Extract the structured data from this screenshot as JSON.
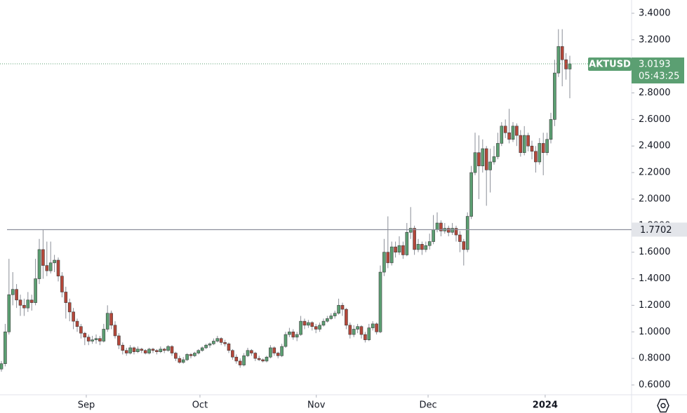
{
  "chart_data": {
    "type": "candlestick",
    "symbol": "AKTUSD",
    "up_color": "#5b9f72",
    "down_color": "#b5473a",
    "edge_color": "#3c3c3c",
    "ylim": [
      0.526,
      3.5
    ],
    "yticks": [
      {
        "value": 0.6,
        "label": "0.6000"
      },
      {
        "value": 0.8,
        "label": "0.8000"
      },
      {
        "value": 1.0,
        "label": "1.0000"
      },
      {
        "value": 1.2,
        "label": "1.2000"
      },
      {
        "value": 1.4,
        "label": "1.4000"
      },
      {
        "value": 1.6,
        "label": "1.6000"
      },
      {
        "value": 1.8,
        "label": "1.8000"
      },
      {
        "value": 2.0,
        "label": "2.0000"
      },
      {
        "value": 2.2,
        "label": "2.2000"
      },
      {
        "value": 2.4,
        "label": "2.4000"
      },
      {
        "value": 2.6,
        "label": "2.6000"
      },
      {
        "value": 2.8,
        "label": "2.8000"
      },
      {
        "value": 3.0,
        "label": "3.0000"
      },
      {
        "value": 3.2,
        "label": "3.2000"
      },
      {
        "value": 3.4,
        "label": "3.4000"
      }
    ],
    "xticks": [
      {
        "value": 22.4,
        "label": "Sep"
      },
      {
        "value": 52.4,
        "label": "Oct"
      },
      {
        "value": 83.1,
        "label": "Nov"
      },
      {
        "value": 112.6,
        "label": "Dec"
      },
      {
        "value": 143.5,
        "label": "2024"
      }
    ],
    "last_price": 3.0193,
    "countdown": "05:43:25",
    "horizontal_line": 1.7702,
    "candles": [
      [
        0.72,
        0.78,
        0.7,
        0.76
      ],
      [
        0.76,
        1.06,
        0.74,
        1.0
      ],
      [
        1.0,
        1.55,
        0.98,
        1.28
      ],
      [
        1.28,
        1.45,
        1.2,
        1.32
      ],
      [
        1.32,
        1.36,
        1.18,
        1.24
      ],
      [
        1.24,
        1.28,
        1.12,
        1.2
      ],
      [
        1.2,
        1.25,
        1.12,
        1.18
      ],
      [
        1.18,
        1.3,
        1.15,
        1.24
      ],
      [
        1.24,
        1.28,
        1.16,
        1.22
      ],
      [
        1.22,
        1.55,
        1.2,
        1.4
      ],
      [
        1.4,
        1.7,
        1.36,
        1.62
      ],
      [
        1.62,
        1.77,
        1.4,
        1.5
      ],
      [
        1.5,
        1.68,
        1.42,
        1.46
      ],
      [
        1.46,
        1.68,
        1.44,
        1.52
      ],
      [
        1.52,
        1.58,
        1.45,
        1.54
      ],
      [
        1.54,
        1.56,
        1.38,
        1.42
      ],
      [
        1.42,
        1.45,
        1.26,
        1.3
      ],
      [
        1.3,
        1.34,
        1.1,
        1.22
      ],
      [
        1.22,
        1.25,
        1.08,
        1.15
      ],
      [
        1.15,
        1.18,
        1.02,
        1.08
      ],
      [
        1.08,
        1.1,
        1.0,
        1.04
      ],
      [
        1.04,
        1.06,
        0.95,
        0.99
      ],
      [
        0.99,
        1.0,
        0.9,
        0.96
      ],
      [
        0.96,
        0.98,
        0.9,
        0.93
      ],
      [
        0.93,
        0.97,
        0.91,
        0.94
      ],
      [
        0.94,
        0.98,
        0.91,
        0.95
      ],
      [
        0.95,
        0.97,
        0.9,
        0.93
      ],
      [
        0.93,
        1.06,
        0.92,
        1.02
      ],
      [
        1.02,
        1.2,
        1.0,
        1.14
      ],
      [
        1.14,
        1.16,
        1.02,
        1.05
      ],
      [
        1.05,
        1.08,
        0.95,
        0.97
      ],
      [
        0.97,
        0.99,
        0.87,
        0.9
      ],
      [
        0.9,
        0.92,
        0.83,
        0.86
      ],
      [
        0.86,
        0.88,
        0.82,
        0.84
      ],
      [
        0.84,
        0.9,
        0.83,
        0.88
      ],
      [
        0.88,
        0.89,
        0.83,
        0.85
      ],
      [
        0.85,
        0.89,
        0.84,
        0.87
      ],
      [
        0.87,
        0.88,
        0.84,
        0.86
      ],
      [
        0.86,
        0.87,
        0.83,
        0.84
      ],
      [
        0.84,
        0.88,
        0.83,
        0.87
      ],
      [
        0.87,
        0.88,
        0.84,
        0.86
      ],
      [
        0.86,
        0.87,
        0.83,
        0.85
      ],
      [
        0.85,
        0.89,
        0.84,
        0.87
      ],
      [
        0.87,
        0.88,
        0.84,
        0.86
      ],
      [
        0.86,
        0.9,
        0.85,
        0.89
      ],
      [
        0.89,
        0.9,
        0.82,
        0.84
      ],
      [
        0.84,
        0.85,
        0.78,
        0.8
      ],
      [
        0.8,
        0.82,
        0.76,
        0.77
      ],
      [
        0.77,
        0.81,
        0.76,
        0.79
      ],
      [
        0.79,
        0.84,
        0.78,
        0.83
      ],
      [
        0.83,
        0.84,
        0.8,
        0.82
      ],
      [
        0.82,
        0.85,
        0.81,
        0.84
      ],
      [
        0.84,
        0.87,
        0.83,
        0.86
      ],
      [
        0.86,
        0.89,
        0.85,
        0.88
      ],
      [
        0.88,
        0.91,
        0.87,
        0.9
      ],
      [
        0.9,
        0.92,
        0.88,
        0.91
      ],
      [
        0.91,
        0.95,
        0.9,
        0.93
      ],
      [
        0.93,
        0.97,
        0.92,
        0.95
      ],
      [
        0.95,
        0.96,
        0.9,
        0.92
      ],
      [
        0.92,
        0.94,
        0.89,
        0.91
      ],
      [
        0.91,
        0.92,
        0.84,
        0.86
      ],
      [
        0.86,
        0.87,
        0.79,
        0.81
      ],
      [
        0.81,
        0.83,
        0.76,
        0.78
      ],
      [
        0.78,
        0.8,
        0.73,
        0.75
      ],
      [
        0.75,
        0.84,
        0.74,
        0.82
      ],
      [
        0.82,
        0.88,
        0.81,
        0.86
      ],
      [
        0.86,
        0.87,
        0.82,
        0.84
      ],
      [
        0.84,
        0.85,
        0.78,
        0.8
      ],
      [
        0.8,
        0.82,
        0.78,
        0.79
      ],
      [
        0.79,
        0.8,
        0.77,
        0.78
      ],
      [
        0.78,
        0.82,
        0.77,
        0.81
      ],
      [
        0.81,
        0.9,
        0.8,
        0.88
      ],
      [
        0.88,
        0.89,
        0.82,
        0.84
      ],
      [
        0.84,
        0.85,
        0.8,
        0.82
      ],
      [
        0.82,
        0.91,
        0.81,
        0.89
      ],
      [
        0.89,
        1.0,
        0.88,
        0.98
      ],
      [
        0.98,
        1.03,
        0.96,
        1.0
      ],
      [
        1.0,
        1.02,
        0.94,
        0.96
      ],
      [
        0.96,
        1.0,
        0.93,
        0.98
      ],
      [
        0.98,
        1.12,
        0.97,
        1.08
      ],
      [
        1.08,
        1.1,
        1.02,
        1.05
      ],
      [
        1.05,
        1.09,
        1.03,
        1.07
      ],
      [
        1.07,
        1.08,
        1.01,
        1.04
      ],
      [
        1.04,
        1.06,
        0.99,
        1.02
      ],
      [
        1.02,
        1.07,
        1.0,
        1.05
      ],
      [
        1.05,
        1.1,
        1.04,
        1.08
      ],
      [
        1.08,
        1.12,
        1.07,
        1.1
      ],
      [
        1.1,
        1.14,
        1.09,
        1.12
      ],
      [
        1.12,
        1.16,
        1.1,
        1.14
      ],
      [
        1.14,
        1.25,
        1.13,
        1.2
      ],
      [
        1.2,
        1.22,
        1.12,
        1.17
      ],
      [
        1.17,
        1.18,
        1.02,
        1.05
      ],
      [
        1.05,
        1.07,
        0.95,
        0.98
      ],
      [
        0.98,
        1.05,
        0.96,
        1.02
      ],
      [
        1.02,
        1.06,
        0.99,
        1.04
      ],
      [
        1.04,
        1.05,
        0.95,
        0.98
      ],
      [
        0.98,
        1.0,
        0.92,
        0.94
      ],
      [
        0.94,
        1.06,
        0.93,
        1.03
      ],
      [
        1.03,
        1.08,
        1.01,
        1.06
      ],
      [
        1.06,
        1.07,
        0.98,
        1.0
      ],
      [
        1.0,
        1.5,
        0.99,
        1.45
      ],
      [
        1.45,
        1.7,
        1.42,
        1.6
      ],
      [
        1.6,
        1.87,
        1.48,
        1.52
      ],
      [
        1.52,
        1.68,
        1.5,
        1.64
      ],
      [
        1.64,
        1.68,
        1.56,
        1.6
      ],
      [
        1.6,
        1.72,
        1.58,
        1.65
      ],
      [
        1.65,
        1.68,
        1.55,
        1.58
      ],
      [
        1.58,
        1.82,
        1.57,
        1.75
      ],
      [
        1.75,
        1.94,
        1.7,
        1.78
      ],
      [
        1.78,
        1.8,
        1.58,
        1.62
      ],
      [
        1.62,
        1.7,
        1.6,
        1.66
      ],
      [
        1.66,
        1.68,
        1.58,
        1.62
      ],
      [
        1.62,
        1.68,
        1.6,
        1.65
      ],
      [
        1.65,
        1.74,
        1.62,
        1.68
      ],
      [
        1.68,
        1.88,
        1.66,
        1.77
      ],
      [
        1.77,
        1.9,
        1.75,
        1.82
      ],
      [
        1.82,
        1.84,
        1.72,
        1.76
      ],
      [
        1.76,
        1.82,
        1.74,
        1.78
      ],
      [
        1.78,
        1.8,
        1.72,
        1.75
      ],
      [
        1.75,
        1.82,
        1.73,
        1.78
      ],
      [
        1.78,
        1.8,
        1.68,
        1.73
      ],
      [
        1.73,
        1.76,
        1.6,
        1.68
      ],
      [
        1.68,
        1.7,
        1.5,
        1.62
      ],
      [
        1.62,
        1.9,
        1.6,
        1.87
      ],
      [
        1.87,
        2.25,
        1.85,
        2.2
      ],
      [
        2.2,
        2.5,
        2.18,
        2.35
      ],
      [
        2.35,
        2.48,
        2.0,
        2.25
      ],
      [
        2.25,
        2.45,
        2.2,
        2.38
      ],
      [
        2.38,
        2.4,
        1.95,
        2.22
      ],
      [
        2.22,
        2.38,
        2.05,
        2.28
      ],
      [
        2.28,
        2.4,
        2.26,
        2.32
      ],
      [
        2.32,
        2.5,
        2.3,
        2.42
      ],
      [
        2.42,
        2.58,
        2.4,
        2.55
      ],
      [
        2.55,
        2.6,
        2.46,
        2.5
      ],
      [
        2.5,
        2.68,
        2.42,
        2.45
      ],
      [
        2.45,
        2.58,
        2.43,
        2.55
      ],
      [
        2.55,
        2.57,
        2.4,
        2.48
      ],
      [
        2.48,
        2.52,
        2.32,
        2.35
      ],
      [
        2.35,
        2.55,
        2.33,
        2.48
      ],
      [
        2.48,
        2.5,
        2.36,
        2.4
      ],
      [
        2.4,
        2.44,
        2.3,
        2.36
      ],
      [
        2.36,
        2.4,
        2.2,
        2.28
      ],
      [
        2.28,
        2.46,
        2.26,
        2.42
      ],
      [
        2.42,
        2.5,
        2.18,
        2.35
      ],
      [
        2.35,
        2.5,
        2.33,
        2.45
      ],
      [
        2.45,
        2.65,
        2.42,
        2.6
      ],
      [
        2.6,
        3.05,
        2.55,
        2.95
      ],
      [
        2.95,
        3.28,
        2.92,
        3.15
      ],
      [
        3.15,
        3.28,
        2.85,
        3.05
      ],
      [
        3.05,
        3.1,
        2.9,
        2.98
      ],
      [
        2.98,
        3.08,
        2.76,
        3.0193
      ]
    ]
  }
}
